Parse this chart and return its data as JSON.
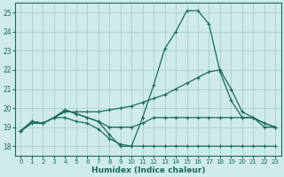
{
  "xlabel": "Humidex (Indice chaleur)",
  "background_color": "#ceeaea",
  "grid_color": "#aacfcf",
  "line_color": "#1a6b5a",
  "xlim": [
    -0.5,
    23.5
  ],
  "ylim": [
    17.5,
    25.5
  ],
  "yticks": [
    18,
    19,
    20,
    21,
    22,
    23,
    24,
    25
  ],
  "xticks": [
    0,
    1,
    2,
    3,
    4,
    5,
    6,
    7,
    8,
    9,
    10,
    11,
    12,
    13,
    14,
    15,
    16,
    17,
    18,
    19,
    20,
    21,
    22,
    23
  ],
  "series": [
    {
      "x": [
        0,
        1,
        2,
        3,
        4,
        5,
        6,
        7,
        8,
        9,
        10,
        11,
        12,
        13,
        14,
        15,
        16,
        17,
        18,
        19,
        20,
        21,
        22,
        23
      ],
      "y": [
        18.8,
        19.3,
        19.2,
        19.5,
        19.9,
        19.7,
        19.5,
        19.3,
        18.6,
        18.0,
        18.0,
        19.5,
        21.2,
        23.1,
        24.0,
        25.1,
        25.1,
        24.4,
        21.9,
        20.4,
        19.5,
        19.5,
        19.0,
        19.0
      ]
    },
    {
      "x": [
        0,
        1,
        2,
        3,
        4,
        5,
        6,
        7,
        8,
        9,
        10,
        11,
        12,
        13,
        14,
        15,
        16,
        17,
        18,
        19,
        20,
        21,
        22,
        23
      ],
      "y": [
        18.8,
        19.2,
        19.2,
        19.5,
        19.8,
        19.8,
        19.8,
        19.8,
        19.9,
        20.0,
        20.1,
        20.3,
        20.5,
        20.7,
        21.0,
        21.3,
        21.6,
        21.9,
        22.0,
        21.0,
        19.8,
        19.5,
        19.2,
        19.0
      ]
    },
    {
      "x": [
        0,
        1,
        2,
        3,
        4,
        5,
        6,
        7,
        8,
        9,
        10,
        11,
        12,
        13,
        14,
        15,
        16,
        17,
        18,
        19,
        20,
        21,
        22,
        23
      ],
      "y": [
        18.8,
        19.3,
        19.2,
        19.5,
        19.9,
        19.7,
        19.5,
        19.3,
        19.0,
        19.0,
        19.0,
        19.2,
        19.5,
        19.5,
        19.5,
        19.5,
        19.5,
        19.5,
        19.5,
        19.5,
        19.5,
        19.5,
        19.2,
        19.0
      ]
    },
    {
      "x": [
        0,
        1,
        2,
        3,
        4,
        5,
        6,
        7,
        8,
        9,
        10,
        11,
        12,
        13,
        14,
        15,
        16,
        17,
        18,
        19,
        20,
        21,
        22,
        23
      ],
      "y": [
        18.8,
        19.3,
        19.2,
        19.5,
        19.5,
        19.3,
        19.2,
        18.9,
        18.4,
        18.1,
        18.0,
        18.0,
        18.0,
        18.0,
        18.0,
        18.0,
        18.0,
        18.0,
        18.0,
        18.0,
        18.0,
        18.0,
        18.0,
        18.0
      ]
    }
  ]
}
